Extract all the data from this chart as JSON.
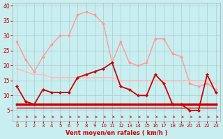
{
  "x": [
    0,
    1,
    2,
    3,
    4,
    5,
    6,
    7,
    8,
    9,
    10,
    11,
    12,
    13,
    14,
    15,
    16,
    17,
    18,
    19,
    20,
    21,
    22,
    23
  ],
  "bg_color": "#c8eef0",
  "grid_color": "#aacccc",
  "tick_color": "#cc0000",
  "xlabel_color": "#cc0000",
  "arrow_color": "#cc2222",
  "xlabel": "Vent moyen/en rafales ( km/h )",
  "yticks": [
    5,
    10,
    15,
    20,
    25,
    30,
    35,
    40
  ],
  "xlim": [
    -0.5,
    23.5
  ],
  "ylim": [
    1.5,
    41
  ],
  "line_rafales": [
    28,
    22,
    18,
    23,
    27,
    30,
    30,
    37,
    38,
    37,
    34,
    21,
    28,
    21,
    20,
    21,
    29,
    29,
    24,
    23,
    14,
    13,
    14,
    12
  ],
  "line_mid_pink": [
    19,
    18,
    17,
    17,
    16,
    16,
    16,
    16,
    16,
    16,
    16,
    16,
    15,
    15,
    15,
    15,
    15,
    15,
    15,
    15,
    15,
    15,
    15,
    14
  ],
  "line_moyen": [
    13,
    8,
    7,
    12,
    11,
    11,
    11,
    16,
    17,
    18,
    19,
    21,
    13,
    12,
    10,
    10,
    17,
    14,
    7,
    7,
    5,
    5,
    17,
    11
  ],
  "line_flat1": [
    7,
    7,
    7,
    7,
    7,
    7,
    7,
    7,
    7,
    7,
    7,
    7,
    7,
    7,
    7,
    7,
    7,
    7,
    7,
    7,
    7,
    7,
    7,
    7
  ],
  "line_flat2": [
    7,
    7,
    7,
    7,
    7,
    7,
    7,
    7,
    7,
    7,
    7,
    7,
    7,
    7,
    7,
    7,
    7,
    7,
    7,
    7,
    7,
    7,
    7,
    7
  ],
  "line_flat3": [
    6,
    6,
    6,
    6,
    6,
    6,
    6,
    6,
    6,
    6,
    6,
    6,
    6,
    6,
    6,
    6,
    6,
    6,
    6,
    6,
    6,
    6,
    6,
    6
  ],
  "color_rafales": "#ff9999",
  "color_mid": "#ffbbbb",
  "color_moyen": "#cc0000",
  "color_flat": "#cc0000",
  "lw_rafales": 1.0,
  "lw_mid": 1.0,
  "lw_moyen": 1.3,
  "lw_flat": 1.5,
  "ms_rafales": 2.5,
  "ms_mid": 2.0,
  "ms_moyen": 2.5,
  "ms_flat": 2.0
}
